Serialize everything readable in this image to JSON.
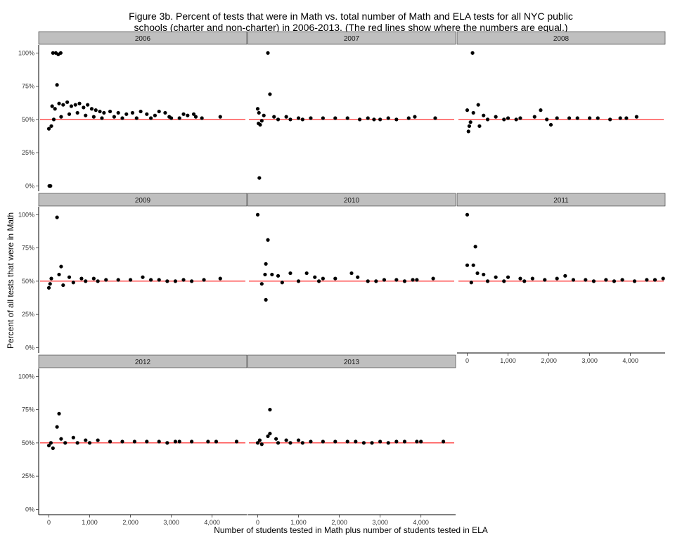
{
  "chart_data": {
    "type": "scatter",
    "title_lines": [
      "Figure 3b. Percent of tests that were in Math vs. total number of Math and ELA tests for all NYC public",
      "schools (charter and non-charter) in 2006-2013. (The red lines show where the numbers are equal.)"
    ],
    "xlabel": "Number of students tested in Math plus number of students tested in ELA",
    "ylabel": "Percent of all tests that were in Math",
    "xlim": [
      -250,
      4850
    ],
    "ylim": [
      -0.04,
      1.06
    ],
    "x_ticks": [
      0,
      1000,
      2000,
      3000,
      4000
    ],
    "x_tick_labels": [
      "0",
      "1,000",
      "2,000",
      "3,000",
      "4,000"
    ],
    "y_ticks": [
      0,
      0.25,
      0.5,
      0.75,
      1.0
    ],
    "y_tick_labels": [
      "0%",
      "25%",
      "50%",
      "75%",
      "100%"
    ],
    "reference_line": {
      "y": 0.5,
      "color": "#ff0000"
    },
    "point_color": "#000000",
    "strip_color": "#bfbfbf",
    "grid": false,
    "facets": [
      {
        "label": "2006",
        "points": [
          [
            0,
            0.43
          ],
          [
            10,
            0.0
          ],
          [
            40,
            0.0
          ],
          [
            60,
            0.45
          ],
          [
            100,
            1.0
          ],
          [
            170,
            1.0
          ],
          [
            230,
            0.99
          ],
          [
            290,
            1.0
          ],
          [
            200,
            0.76
          ],
          [
            80,
            0.6
          ],
          [
            150,
            0.58
          ],
          [
            250,
            0.62
          ],
          [
            350,
            0.61
          ],
          [
            450,
            0.63
          ],
          [
            550,
            0.6
          ],
          [
            650,
            0.61
          ],
          [
            750,
            0.62
          ],
          [
            850,
            0.59
          ],
          [
            950,
            0.61
          ],
          [
            1050,
            0.58
          ],
          [
            1150,
            0.57
          ],
          [
            1250,
            0.56
          ],
          [
            1350,
            0.55
          ],
          [
            1500,
            0.56
          ],
          [
            1700,
            0.55
          ],
          [
            1900,
            0.54
          ],
          [
            2050,
            0.55
          ],
          [
            2250,
            0.56
          ],
          [
            2400,
            0.54
          ],
          [
            2600,
            0.53
          ],
          [
            2700,
            0.56
          ],
          [
            2850,
            0.55
          ],
          [
            2950,
            0.52
          ],
          [
            3300,
            0.54
          ],
          [
            3400,
            0.53
          ],
          [
            3550,
            0.54
          ],
          [
            3750,
            0.51
          ],
          [
            4200,
            0.52
          ],
          [
            120,
            0.5
          ],
          [
            300,
            0.52
          ],
          [
            500,
            0.54
          ],
          [
            700,
            0.55
          ],
          [
            900,
            0.53
          ],
          [
            1100,
            0.52
          ],
          [
            1300,
            0.51
          ],
          [
            1600,
            0.52
          ],
          [
            1800,
            0.51
          ],
          [
            2150,
            0.51
          ],
          [
            2500,
            0.51
          ],
          [
            3000,
            0.51
          ],
          [
            3200,
            0.51
          ],
          [
            3600,
            0.52
          ]
        ]
      },
      {
        "label": "2007",
        "points": [
          [
            0,
            0.58
          ],
          [
            30,
            0.55
          ],
          [
            20,
            0.47
          ],
          [
            60,
            0.46
          ],
          [
            40,
            0.06
          ],
          [
            250,
            1.0
          ],
          [
            300,
            0.69
          ],
          [
            150,
            0.53
          ],
          [
            400,
            0.52
          ],
          [
            700,
            0.52
          ],
          [
            1000,
            0.51
          ],
          [
            1300,
            0.51
          ],
          [
            1600,
            0.51
          ],
          [
            1900,
            0.51
          ],
          [
            2200,
            0.51
          ],
          [
            2500,
            0.5
          ],
          [
            2700,
            0.51
          ],
          [
            2850,
            0.5
          ],
          [
            3000,
            0.5
          ],
          [
            3200,
            0.51
          ],
          [
            3400,
            0.5
          ],
          [
            3700,
            0.51
          ],
          [
            3850,
            0.52
          ],
          [
            4350,
            0.51
          ],
          [
            100,
            0.49
          ],
          [
            500,
            0.5
          ],
          [
            800,
            0.5
          ],
          [
            1100,
            0.5
          ]
        ]
      },
      {
        "label": "2008",
        "points": [
          [
            0,
            0.57
          ],
          [
            30,
            0.41
          ],
          [
            50,
            0.45
          ],
          [
            130,
            1.0
          ],
          [
            270,
            0.61
          ],
          [
            300,
            0.45
          ],
          [
            150,
            0.55
          ],
          [
            400,
            0.53
          ],
          [
            700,
            0.52
          ],
          [
            1000,
            0.51
          ],
          [
            1300,
            0.51
          ],
          [
            1650,
            0.52
          ],
          [
            1800,
            0.57
          ],
          [
            1950,
            0.5
          ],
          [
            2050,
            0.46
          ],
          [
            2200,
            0.51
          ],
          [
            2500,
            0.51
          ],
          [
            2700,
            0.51
          ],
          [
            3000,
            0.51
          ],
          [
            3200,
            0.51
          ],
          [
            3500,
            0.5
          ],
          [
            3750,
            0.51
          ],
          [
            3900,
            0.51
          ],
          [
            4150,
            0.52
          ],
          [
            80,
            0.48
          ],
          [
            500,
            0.5
          ],
          [
            900,
            0.5
          ],
          [
            1200,
            0.5
          ]
        ]
      },
      {
        "label": "2009",
        "points": [
          [
            0,
            0.45
          ],
          [
            30,
            0.48
          ],
          [
            60,
            0.52
          ],
          [
            200,
            0.98
          ],
          [
            300,
            0.61
          ],
          [
            250,
            0.55
          ],
          [
            500,
            0.53
          ],
          [
            800,
            0.52
          ],
          [
            1100,
            0.52
          ],
          [
            1400,
            0.51
          ],
          [
            1700,
            0.51
          ],
          [
            2000,
            0.51
          ],
          [
            2300,
            0.53
          ],
          [
            2500,
            0.51
          ],
          [
            2700,
            0.51
          ],
          [
            2900,
            0.5
          ],
          [
            3100,
            0.5
          ],
          [
            3300,
            0.51
          ],
          [
            3500,
            0.5
          ],
          [
            3800,
            0.51
          ],
          [
            4200,
            0.52
          ],
          [
            350,
            0.47
          ],
          [
            600,
            0.49
          ],
          [
            900,
            0.5
          ],
          [
            1200,
            0.5
          ]
        ]
      },
      {
        "label": "2010",
        "points": [
          [
            0,
            1.0
          ],
          [
            250,
            0.81
          ],
          [
            200,
            0.63
          ],
          [
            180,
            0.55
          ],
          [
            200,
            0.36
          ],
          [
            350,
            0.55
          ],
          [
            500,
            0.54
          ],
          [
            800,
            0.56
          ],
          [
            1200,
            0.56
          ],
          [
            1400,
            0.53
          ],
          [
            1600,
            0.52
          ],
          [
            1900,
            0.52
          ],
          [
            2300,
            0.56
          ],
          [
            2450,
            0.53
          ],
          [
            2700,
            0.5
          ],
          [
            2900,
            0.5
          ],
          [
            3100,
            0.51
          ],
          [
            3400,
            0.51
          ],
          [
            3600,
            0.5
          ],
          [
            3800,
            0.51
          ],
          [
            3900,
            0.51
          ],
          [
            4300,
            0.52
          ],
          [
            100,
            0.48
          ],
          [
            600,
            0.49
          ],
          [
            1000,
            0.5
          ],
          [
            1500,
            0.5
          ]
        ]
      },
      {
        "label": "2011",
        "points": [
          [
            0,
            1.0
          ],
          [
            200,
            0.76
          ],
          [
            0,
            0.62
          ],
          [
            150,
            0.62
          ],
          [
            250,
            0.56
          ],
          [
            400,
            0.55
          ],
          [
            700,
            0.53
          ],
          [
            1000,
            0.53
          ],
          [
            1300,
            0.52
          ],
          [
            1600,
            0.52
          ],
          [
            1900,
            0.51
          ],
          [
            2200,
            0.52
          ],
          [
            2400,
            0.54
          ],
          [
            2600,
            0.51
          ],
          [
            2900,
            0.51
          ],
          [
            3100,
            0.5
          ],
          [
            3400,
            0.51
          ],
          [
            3600,
            0.5
          ],
          [
            3800,
            0.51
          ],
          [
            4100,
            0.5
          ],
          [
            4400,
            0.51
          ],
          [
            4600,
            0.51
          ],
          [
            4800,
            0.52
          ],
          [
            100,
            0.49
          ],
          [
            500,
            0.5
          ],
          [
            900,
            0.5
          ],
          [
            1400,
            0.5
          ]
        ]
      },
      {
        "label": "2012",
        "points": [
          [
            0,
            0.48
          ],
          [
            100,
            0.46
          ],
          [
            250,
            0.72
          ],
          [
            200,
            0.62
          ],
          [
            300,
            0.53
          ],
          [
            600,
            0.54
          ],
          [
            900,
            0.52
          ],
          [
            1200,
            0.52
          ],
          [
            1500,
            0.51
          ],
          [
            1800,
            0.51
          ],
          [
            2100,
            0.51
          ],
          [
            2400,
            0.51
          ],
          [
            2700,
            0.51
          ],
          [
            2900,
            0.5
          ],
          [
            3100,
            0.51
          ],
          [
            3200,
            0.51
          ],
          [
            3500,
            0.51
          ],
          [
            3900,
            0.51
          ],
          [
            4100,
            0.51
          ],
          [
            4600,
            0.51
          ],
          [
            50,
            0.5
          ],
          [
            400,
            0.5
          ],
          [
            700,
            0.5
          ],
          [
            1000,
            0.5
          ]
        ]
      },
      {
        "label": "2013",
        "points": [
          [
            0,
            0.5
          ],
          [
            50,
            0.52
          ],
          [
            300,
            0.75
          ],
          [
            250,
            0.55
          ],
          [
            300,
            0.57
          ],
          [
            450,
            0.53
          ],
          [
            700,
            0.52
          ],
          [
            1000,
            0.52
          ],
          [
            1300,
            0.51
          ],
          [
            1600,
            0.51
          ],
          [
            1900,
            0.51
          ],
          [
            2200,
            0.51
          ],
          [
            2400,
            0.51
          ],
          [
            2600,
            0.5
          ],
          [
            2800,
            0.5
          ],
          [
            3000,
            0.51
          ],
          [
            3200,
            0.5
          ],
          [
            3400,
            0.51
          ],
          [
            3600,
            0.51
          ],
          [
            3900,
            0.51
          ],
          [
            4000,
            0.51
          ],
          [
            4550,
            0.51
          ],
          [
            100,
            0.49
          ],
          [
            500,
            0.5
          ],
          [
            800,
            0.5
          ],
          [
            1100,
            0.5
          ]
        ]
      }
    ]
  }
}
